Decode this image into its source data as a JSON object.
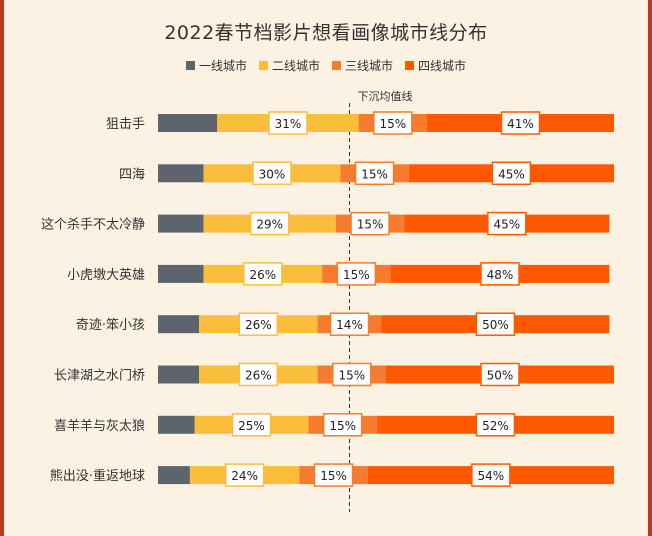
{
  "chart_data": {
    "type": "bar",
    "stacked": true,
    "title": "2022春节档影片想看画像城市线分布",
    "legend_position": "top",
    "reference_line_label": "下沉均值线",
    "categories": [
      "狙击手",
      "四海",
      "这个杀手不太冷静",
      "小虎墩大英雄",
      "奇迹·笨小孩",
      "长津湖之水门桥",
      "喜羊羊与灰太狼",
      "熊出没·重返地球"
    ],
    "series": [
      {
        "name": "一线城市",
        "color": "#5d646e",
        "values": [
          13,
          10,
          10,
          10,
          9,
          9,
          8,
          7
        ],
        "labels": [
          "",
          "",
          "",
          "",
          "",
          "",
          "",
          ""
        ]
      },
      {
        "name": "二线城市",
        "color": "#fbbd3c",
        "values": [
          31,
          30,
          29,
          26,
          26,
          26,
          25,
          24
        ],
        "labels": [
          "31%",
          "30%",
          "29%",
          "26%",
          "26%",
          "26%",
          "25%",
          "24%"
        ]
      },
      {
        "name": "三线城市",
        "color": "#f57b2e",
        "values": [
          15,
          15,
          15,
          15,
          14,
          15,
          15,
          15
        ],
        "labels": [
          "15%",
          "15%",
          "15%",
          "15%",
          "14%",
          "15%",
          "15%",
          "15%"
        ]
      },
      {
        "name": "四线城市",
        "color": "#ff5900",
        "values": [
          41,
          45,
          45,
          48,
          50,
          50,
          52,
          54
        ],
        "labels": [
          "41%",
          "45%",
          "45%",
          "48%",
          "50%",
          "50%",
          "52%",
          "54%"
        ]
      }
    ],
    "reference_line_value": 42
  }
}
